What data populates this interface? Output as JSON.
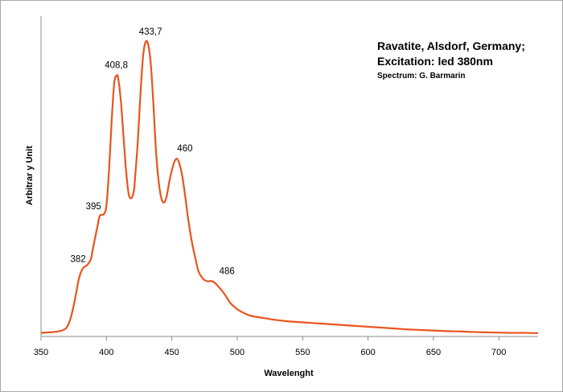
{
  "chart_data": {
    "type": "line",
    "title_lines": [
      "Ravatite, Alsdorf, Germany;",
      "Excitation:  led 380nm"
    ],
    "subtitle": "Spectrum: G. Barmarin",
    "xlabel": "Wavelenght",
    "ylabel": "Arbitrar y Unit",
    "xlim": [
      350,
      730
    ],
    "ylim": [
      0,
      1
    ],
    "x_ticks": [
      350,
      400,
      450,
      500,
      550,
      600,
      650,
      700
    ],
    "x_tick_labels": [
      "350",
      "400",
      "450",
      "500",
      "550",
      "600",
      "650",
      "700"
    ],
    "y_ticks_shown": false,
    "grid": false,
    "line_color": "#e8541e",
    "series": [
      {
        "x": [
          350,
          360,
          366,
          370,
          373,
          376,
          379,
          382,
          385,
          388,
          390,
          393,
          395,
          398,
          400,
          402,
          404,
          406,
          408,
          409,
          411,
          413,
          415,
          417,
          419,
          421,
          422,
          424,
          426,
          428,
          430,
          432,
          434,
          436,
          438,
          440,
          442,
          444,
          446,
          448,
          450,
          452,
          454,
          456,
          458,
          460,
          462,
          464,
          466,
          468,
          470,
          472,
          475,
          478,
          480,
          483,
          486,
          489,
          492,
          495,
          500,
          505,
          510,
          520,
          530,
          540,
          550,
          560,
          570,
          580,
          590,
          600,
          610,
          620,
          630,
          640,
          650,
          660,
          670,
          680,
          690,
          700,
          710,
          720,
          730
        ],
        "y": [
          0.004,
          0.007,
          0.012,
          0.025,
          0.06,
          0.12,
          0.19,
          0.225,
          0.235,
          0.255,
          0.3,
          0.365,
          0.405,
          0.41,
          0.44,
          0.56,
          0.73,
          0.86,
          0.885,
          0.875,
          0.8,
          0.68,
          0.56,
          0.48,
          0.465,
          0.49,
          0.54,
          0.66,
          0.82,
          0.95,
          1.0,
          0.99,
          0.92,
          0.78,
          0.62,
          0.52,
          0.465,
          0.45,
          0.47,
          0.52,
          0.56,
          0.59,
          0.6,
          0.58,
          0.54,
          0.48,
          0.41,
          0.35,
          0.3,
          0.26,
          0.22,
          0.2,
          0.185,
          0.18,
          0.182,
          0.175,
          0.16,
          0.145,
          0.125,
          0.105,
          0.085,
          0.072,
          0.063,
          0.055,
          0.048,
          0.043,
          0.04,
          0.037,
          0.034,
          0.031,
          0.028,
          0.025,
          0.022,
          0.019,
          0.016,
          0.014,
          0.012,
          0.01,
          0.009,
          0.007,
          0.006,
          0.005,
          0.004,
          0.004,
          0.003
        ]
      }
    ],
    "annotations": [
      {
        "text": "382",
        "x": 382,
        "y": 0.225
      },
      {
        "text": "395",
        "x": 395,
        "y": 0.405
      },
      {
        "text": "408,8",
        "x": 408.8,
        "y": 0.885
      },
      {
        "text": "433,7",
        "x": 433.7,
        "y": 1.0
      },
      {
        "text": "460",
        "x": 460,
        "y": 0.6
      },
      {
        "text": "486",
        "x": 486,
        "y": 0.18
      }
    ]
  }
}
